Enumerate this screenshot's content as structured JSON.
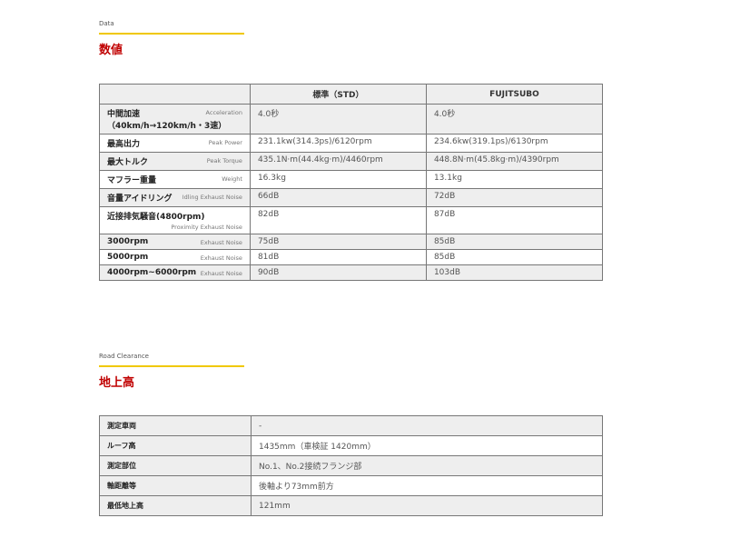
{
  "data_section": {
    "label": "Data",
    "title": "数値",
    "headers": [
      "",
      "標準（STD）",
      "FUJITSUBO"
    ],
    "rows": [
      {
        "jp": "中間加速（40km/h→120km/h・3速）",
        "en": "Acceleration",
        "std": "4.0秒",
        "fuji": "4.0秒"
      },
      {
        "jp": "最高出力",
        "en": "Peak Power",
        "std": "231.1kw(314.3ps)/6120rpm",
        "fuji": "234.6kw(319.1ps)/6130rpm"
      },
      {
        "jp": "最大トルク",
        "en": "Peak Torque",
        "std": "435.1N·m(44.4kg·m)/4460rpm",
        "fuji": "448.8N·m(45.8kg·m)/4390rpm"
      },
      {
        "jp": "マフラー重量",
        "en": "Weight",
        "std": "16.3kg",
        "fuji": "13.1kg"
      },
      {
        "jp": "音量アイドリング",
        "en": "Idling Exhaust Noise",
        "std": "66dB",
        "fuji": "72dB"
      },
      {
        "jp": "近接排気騒音(4800rpm)",
        "en": "Proximity Exhaust Noise",
        "std": "82dB",
        "fuji": "87dB"
      },
      {
        "jp": "3000rpm",
        "en": "Exhaust Noise",
        "std": "75dB",
        "fuji": "85dB"
      },
      {
        "jp": "5000rpm",
        "en": "Exhaust Noise",
        "std": "81dB",
        "fuji": "85dB"
      },
      {
        "jp": "4000rpm~6000rpm",
        "en": "Exhaust Noise",
        "std": "90dB",
        "fuji": "103dB"
      }
    ]
  },
  "clearance_section": {
    "label": "Road Clearance",
    "title": "地上高",
    "rows": [
      {
        "k": "測定車両",
        "v": "-"
      },
      {
        "k": "ルーフ高",
        "v": "1435mm（車検証 1420mm）"
      },
      {
        "k": "測定部位",
        "v": "No.1、No.2接続フランジ部"
      },
      {
        "k": "軸距離等",
        "v": "後軸より73mm前方"
      },
      {
        "k": "最低地上高",
        "v": "121mm"
      }
    ]
  },
  "colors": {
    "accent_line": "#f0c800",
    "title": "#c00000"
  }
}
